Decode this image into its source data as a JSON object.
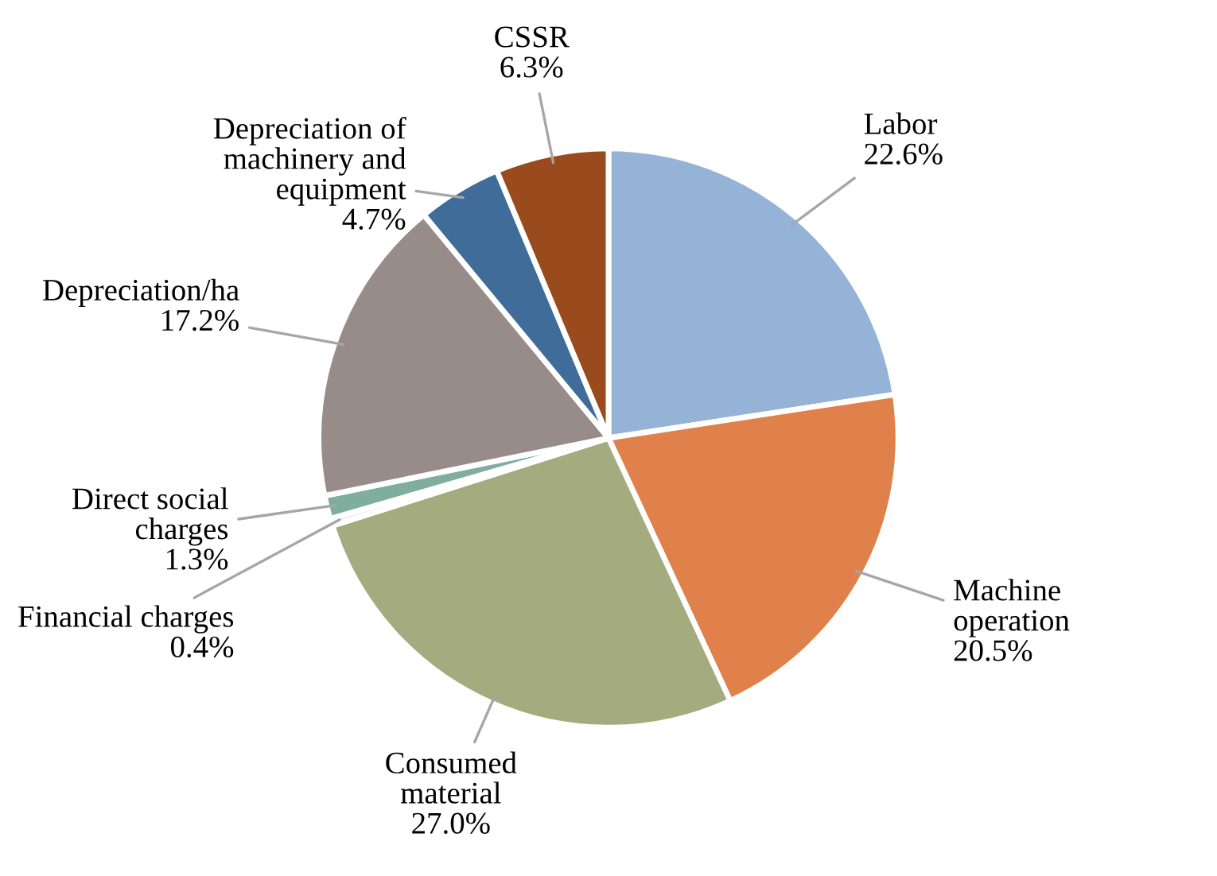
{
  "chart_data": {
    "type": "pie",
    "categories": [
      "Labor",
      "Machine\noperation",
      "Consumed\nmaterial",
      "Financial charges",
      "Direct social\ncharges",
      "Depreciation/ha",
      "Depreciation of\nmachinery and\nequipment",
      "CSSR"
    ],
    "values": [
      22.6,
      20.5,
      27.0,
      0.4,
      1.3,
      17.2,
      4.7,
      6.3
    ],
    "colors": [
      "#95b3d7",
      "#e0804a",
      "#a4ab7e",
      "#e8e8e8",
      "#7fae9f",
      "#978c89",
      "#3f6c98",
      "#994b1e"
    ],
    "value_labels": [
      "22.6%",
      "20.5%",
      "27.0%",
      "0.4%",
      "1.3%",
      "17.2%",
      "4.7%",
      "6.3%"
    ],
    "legend": false
  }
}
